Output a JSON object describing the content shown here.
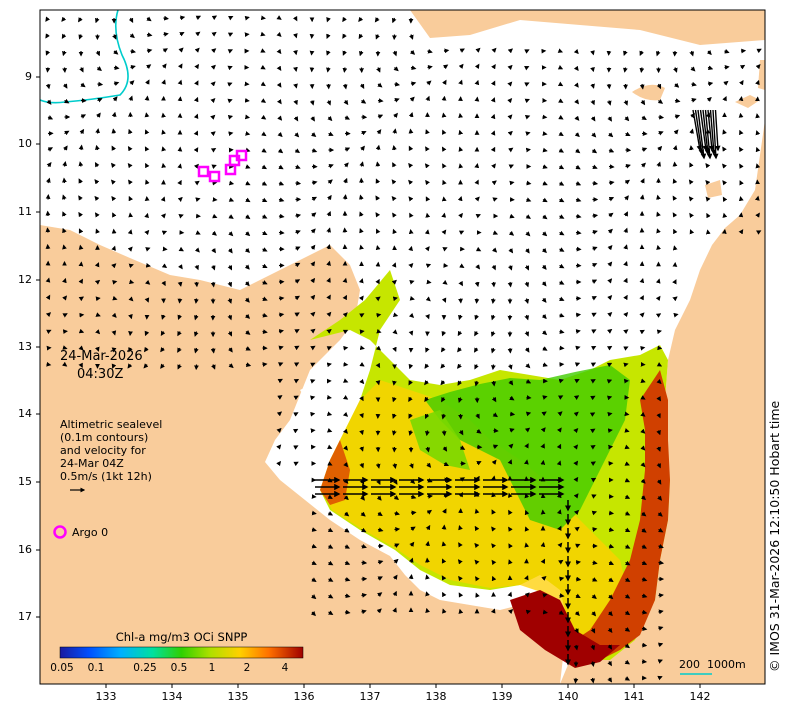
{
  "timestamp": {
    "date": "24-Mar-2026",
    "time": "04:30Z"
  },
  "velocity_legend": {
    "line1": "Altimetric sealevel",
    "line2": "(0.1m contours)",
    "line3": "and velocity for",
    "line4": "24-Mar 04Z",
    "line5": "0.5m/s (1kt 12h)"
  },
  "argo": {
    "label": "Argo 0",
    "color": "#ff00ff"
  },
  "colorbar": {
    "title": "Chl-a mg/m3 OCi SNPP",
    "tick_labels": [
      "0.05",
      "0.1",
      "0.25",
      "0.5",
      "1",
      "2",
      "4"
    ]
  },
  "scale_bar": {
    "label": "200  1000m",
    "color": "#00cccc"
  },
  "credit": "© IMOS 31-Mar-2026 12:10:50 Hobart time",
  "axes": {
    "lat_ticks": [
      "9",
      "10",
      "11",
      "12",
      "13",
      "14",
      "15",
      "16",
      "17"
    ],
    "lon_ticks": [
      "133",
      "134",
      "135",
      "136",
      "137",
      "138",
      "139",
      "140",
      "141",
      "142"
    ]
  },
  "colors": {
    "land": "#f9cc9b",
    "sea": "#ffffff",
    "arrow": "#000000",
    "contour_200m": "#00cccc"
  }
}
